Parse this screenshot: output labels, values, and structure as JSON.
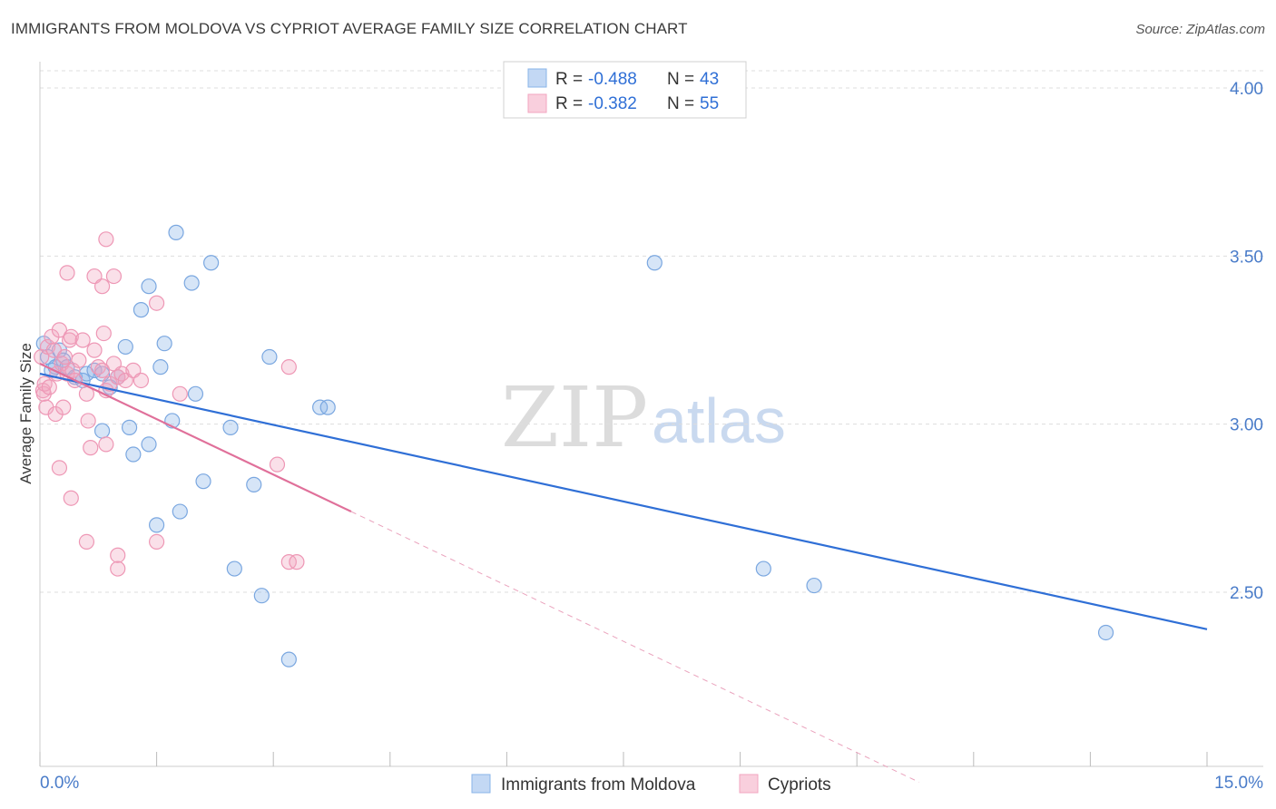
{
  "title": "IMMIGRANTS FROM MOLDOVA VS CYPRIOT AVERAGE FAMILY SIZE CORRELATION CHART",
  "source": "Source: ZipAtlas.com",
  "watermark": {
    "part1": "ZIP",
    "part2": "atlas"
  },
  "colors": {
    "blue": "#8ab4e8",
    "blue_line": "#2f6fd6",
    "pink": "#f2a6c0",
    "pink_line": "#e0709a"
  },
  "legend": {
    "rows": [
      {
        "r_label": "R = ",
        "r_value": "-0.488",
        "n_label": "N = ",
        "n_value": "43"
      },
      {
        "r_label": "R = ",
        "r_value": "-0.382",
        "n_label": "N = ",
        "n_value": "55"
      }
    ]
  },
  "chart_data": {
    "type": "scatter",
    "title": "IMMIGRANTS FROM MOLDOVA VS CYPRIOT AVERAGE FAMILY SIZE CORRELATION CHART",
    "xlabel": "",
    "ylabel": "Average Family Size",
    "xlim": [
      0,
      15
    ],
    "ylim": [
      2.0,
      4.12
    ],
    "x_tick_labels": [
      "0.0%",
      "15.0%"
    ],
    "y_ticks": [
      2.5,
      3.0,
      3.5,
      4.0
    ],
    "y_tick_labels": [
      "2.50",
      "3.00",
      "3.50",
      "4.00"
    ],
    "grid": true,
    "legend_position": "top-center",
    "series": [
      {
        "name": "Immigrants from Moldova",
        "color": "#8ab4e8",
        "points": [
          [
            0.05,
            3.24
          ],
          [
            0.1,
            3.2
          ],
          [
            0.15,
            3.16
          ],
          [
            0.2,
            3.17
          ],
          [
            0.25,
            3.22
          ],
          [
            0.3,
            3.19
          ],
          [
            0.35,
            3.17
          ],
          [
            0.45,
            3.14
          ],
          [
            0.55,
            3.13
          ],
          [
            0.6,
            3.15
          ],
          [
            0.7,
            3.16
          ],
          [
            0.8,
            3.15
          ],
          [
            0.9,
            3.11
          ],
          [
            1.0,
            3.14
          ],
          [
            1.1,
            3.23
          ],
          [
            0.8,
            2.98
          ],
          [
            1.15,
            2.99
          ],
          [
            1.2,
            2.91
          ],
          [
            1.3,
            3.34
          ],
          [
            1.4,
            2.94
          ],
          [
            1.4,
            3.41
          ],
          [
            1.5,
            2.7
          ],
          [
            1.55,
            3.17
          ],
          [
            1.6,
            3.24
          ],
          [
            1.7,
            3.01
          ],
          [
            1.75,
            3.57
          ],
          [
            1.8,
            2.74
          ],
          [
            1.95,
            3.42
          ],
          [
            2.0,
            3.09
          ],
          [
            2.1,
            2.83
          ],
          [
            2.2,
            3.48
          ],
          [
            2.45,
            2.99
          ],
          [
            2.5,
            2.57
          ],
          [
            2.75,
            2.82
          ],
          [
            2.85,
            2.49
          ],
          [
            2.95,
            3.2
          ],
          [
            3.2,
            2.3
          ],
          [
            3.6,
            3.05
          ],
          [
            3.7,
            3.05
          ],
          [
            7.9,
            3.48
          ],
          [
            9.3,
            2.57
          ],
          [
            9.95,
            2.52
          ],
          [
            13.7,
            2.38
          ]
        ]
      },
      {
        "name": "Cypriots",
        "color": "#f2a6c0",
        "points": [
          [
            0.02,
            3.2
          ],
          [
            0.04,
            3.1
          ],
          [
            0.05,
            3.09
          ],
          [
            0.06,
            3.12
          ],
          [
            0.08,
            3.05
          ],
          [
            0.1,
            3.23
          ],
          [
            0.12,
            3.11
          ],
          [
            0.15,
            3.26
          ],
          [
            0.18,
            3.22
          ],
          [
            0.2,
            3.03
          ],
          [
            0.22,
            3.15
          ],
          [
            0.25,
            3.28
          ],
          [
            0.28,
            3.18
          ],
          [
            0.3,
            3.05
          ],
          [
            0.32,
            3.2
          ],
          [
            0.35,
            3.15
          ],
          [
            0.38,
            3.25
          ],
          [
            0.4,
            3.26
          ],
          [
            0.42,
            3.16
          ],
          [
            0.45,
            3.13
          ],
          [
            0.5,
            3.19
          ],
          [
            0.55,
            3.25
          ],
          [
            0.6,
            3.09
          ],
          [
            0.62,
            3.01
          ],
          [
            0.7,
            3.22
          ],
          [
            0.75,
            3.17
          ],
          [
            0.8,
            3.16
          ],
          [
            0.82,
            3.27
          ],
          [
            0.85,
            3.1
          ],
          [
            0.9,
            3.12
          ],
          [
            0.95,
            3.18
          ],
          [
            1.0,
            3.14
          ],
          [
            1.05,
            3.15
          ],
          [
            1.1,
            3.13
          ],
          [
            1.2,
            3.16
          ],
          [
            1.3,
            3.13
          ],
          [
            0.35,
            3.45
          ],
          [
            0.7,
            3.44
          ],
          [
            0.8,
            3.41
          ],
          [
            0.95,
            3.44
          ],
          [
            0.85,
            3.55
          ],
          [
            1.5,
            3.36
          ],
          [
            0.25,
            2.87
          ],
          [
            0.4,
            2.78
          ],
          [
            0.65,
            2.93
          ],
          [
            0.85,
            2.94
          ],
          [
            0.6,
            2.65
          ],
          [
            1.0,
            2.61
          ],
          [
            1.0,
            2.57
          ],
          [
            1.5,
            2.65
          ],
          [
            1.8,
            3.09
          ],
          [
            3.2,
            3.17
          ],
          [
            3.05,
            2.88
          ],
          [
            3.2,
            2.59
          ],
          [
            3.3,
            2.59
          ]
        ]
      }
    ],
    "trend_lines": [
      {
        "series": "Immigrants from Moldova",
        "from": [
          0,
          3.15
        ],
        "to": [
          15,
          2.39
        ],
        "style": "solid"
      },
      {
        "series": "Cypriots",
        "from": [
          0,
          3.18
        ],
        "to": [
          4.0,
          2.74
        ],
        "style": "solid"
      },
      {
        "series": "Cypriots",
        "from": [
          4.0,
          2.74
        ],
        "to": [
          11.3,
          1.935
        ],
        "style": "dashed"
      }
    ]
  }
}
